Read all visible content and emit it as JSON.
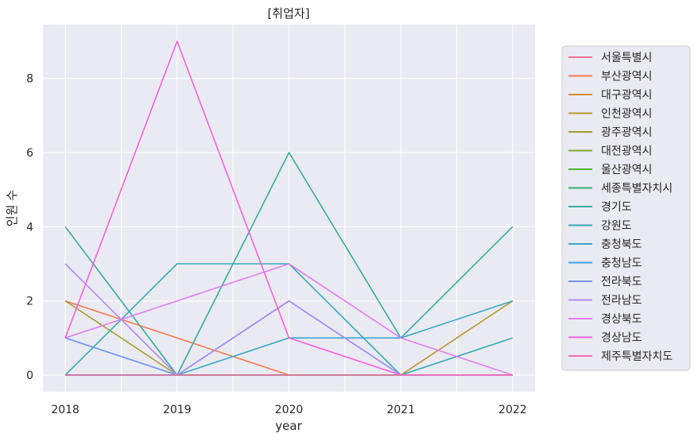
{
  "chart_data": {
    "type": "line",
    "title": "[취업자]",
    "xlabel": "year",
    "ylabel": "인원 수",
    "x": [
      2018,
      2019,
      2020,
      2021,
      2022
    ],
    "xlim": [
      2017.8,
      2022.2
    ],
    "ylim": [
      -0.45,
      9.45
    ],
    "yticks": [
      0,
      2,
      4,
      6,
      8
    ],
    "grid": true,
    "legend_position": "right",
    "series": [
      {
        "name": "서울특별시",
        "color": "#f77189",
        "values": [
          0,
          0,
          0,
          0,
          0
        ]
      },
      {
        "name": "부산광역시",
        "color": "#f3794f",
        "values": [
          2,
          1,
          0,
          0,
          0
        ]
      },
      {
        "name": "대구광역시",
        "color": "#d58c32",
        "values": [
          0,
          0,
          0,
          0,
          0
        ]
      },
      {
        "name": "인천광역시",
        "color": "#bb9832",
        "values": [
          0,
          0,
          0,
          0,
          2
        ]
      },
      {
        "name": "광주광역시",
        "color": "#a39f31",
        "values": [
          2,
          0,
          0,
          0,
          0
        ]
      },
      {
        "name": "대전광역시",
        "color": "#87a831",
        "values": [
          0,
          0,
          0,
          0,
          0
        ]
      },
      {
        "name": "울산광역시",
        "color": "#50b131",
        "values": [
          0,
          0,
          0,
          0,
          0
        ]
      },
      {
        "name": "세종특별자치시",
        "color": "#33b07a",
        "values": [
          0,
          0,
          0,
          0,
          0
        ]
      },
      {
        "name": "경기도",
        "color": "#35ad9c",
        "values": [
          4,
          0,
          6,
          1,
          4
        ]
      },
      {
        "name": "강원도",
        "color": "#37abb5",
        "values": [
          0,
          3,
          3,
          0,
          1
        ]
      },
      {
        "name": "충청북도",
        "color": "#39a7c8",
        "values": [
          0,
          0,
          1,
          1,
          2
        ]
      },
      {
        "name": "충청남도",
        "color": "#3ba3ec",
        "values": [
          1,
          0,
          2,
          0,
          0
        ]
      },
      {
        "name": "전라북도",
        "color": "#7795f4",
        "values": [
          1,
          0,
          2,
          0,
          0
        ]
      },
      {
        "name": "전라남도",
        "color": "#ae8cf4",
        "values": [
          3,
          0,
          2,
          0,
          0
        ]
      },
      {
        "name": "경상북도",
        "color": "#e07bf4",
        "values": [
          1,
          2,
          3,
          1,
          0
        ]
      },
      {
        "name": "경상남도",
        "color": "#f561dd",
        "values": [
          1,
          9,
          1,
          0,
          0
        ]
      },
      {
        "name": "제주특별자치도",
        "color": "#f66bad",
        "values": [
          0,
          0,
          0,
          0,
          0
        ]
      }
    ]
  }
}
